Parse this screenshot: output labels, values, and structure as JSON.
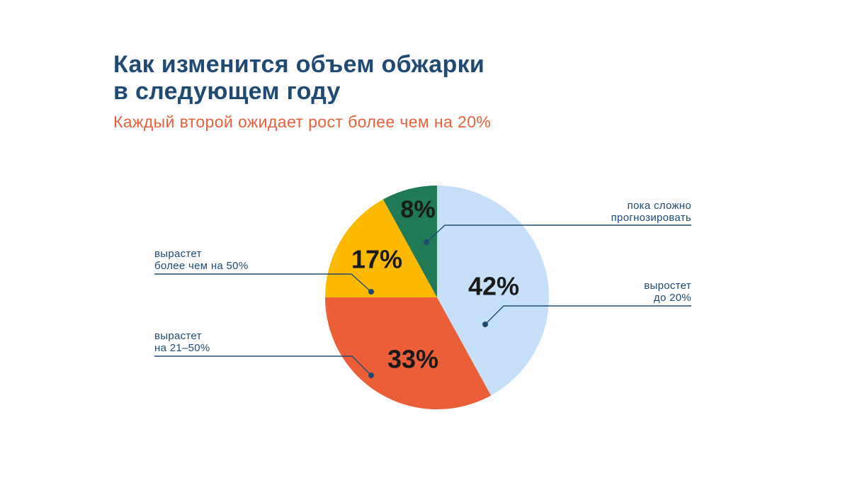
{
  "header": {
    "title_line1": "Как изменится объем обжарки",
    "title_line2": "в следующем году",
    "subtitle": "Каждый второй ожидает рост более чем на 20%"
  },
  "colors": {
    "title": "#1f4a73",
    "subtitle": "#e8603c",
    "leader": "#1f4a73"
  },
  "chart_data": {
    "type": "pie",
    "start": "12 o'clock, clockwise",
    "slices": [
      {
        "value": 42,
        "label": "42%",
        "color": "#c7e0f9",
        "legend_lines": [
          "выростет",
          "до 20%"
        ]
      },
      {
        "value": 33,
        "label": "33%",
        "color": "#eb5e37",
        "legend_lines": [
          "вырастет",
          "на 21–50%"
        ]
      },
      {
        "value": 17,
        "label": "17%",
        "color": "#fcb900",
        "legend_lines": [
          "вырастет",
          "более чем на 50%"
        ]
      },
      {
        "value": 8,
        "label": "8%",
        "color": "#1f7a55",
        "legend_lines": [
          "пока сложно",
          "прогнозировать"
        ]
      }
    ]
  }
}
